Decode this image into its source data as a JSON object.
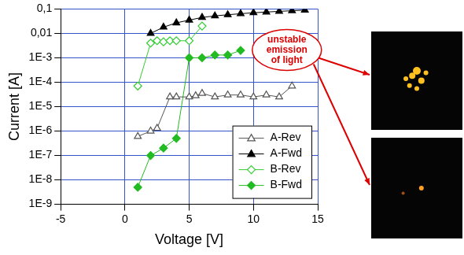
{
  "chart_data": {
    "type": "line",
    "x_label": "Voltage [V]",
    "y_label": "Current [A]",
    "annotation": "unstable emission of light",
    "log": "y",
    "grid": true,
    "legend": "lower right",
    "xlim": [
      -5,
      15
    ],
    "xticks": [
      -5,
      0,
      5,
      10,
      15
    ],
    "ylim": [
      1e-09,
      0.1
    ],
    "yticks": [
      {
        "value": 1e-09,
        "label": "1E-9"
      },
      {
        "value": 1e-08,
        "label": "1E-8"
      },
      {
        "value": 1e-07,
        "label": "1E-7"
      },
      {
        "value": 1e-06,
        "label": "1E-6"
      },
      {
        "value": 1e-05,
        "label": "1E-5"
      },
      {
        "value": 0.0001,
        "label": "1E-4"
      },
      {
        "value": 0.001,
        "label": "1E-3"
      },
      {
        "value": 0.01,
        "label": "0,01"
      },
      {
        "value": 0.1,
        "label": "0,1"
      }
    ],
    "series": [
      {
        "name": "A-Rev",
        "color": "#555555",
        "marker": "triangle_open",
        "x": [
          1,
          2,
          2.5,
          3.5,
          4,
          5,
          5.5,
          6,
          7,
          8,
          9,
          10,
          11,
          12,
          13
        ],
        "values": [
          6e-07,
          1e-06,
          1.3e-06,
          2.5e-05,
          2.5e-05,
          2.5e-05,
          2.8e-05,
          3.5e-05,
          2.5e-05,
          3e-05,
          3e-05,
          2.5e-05,
          3e-05,
          2.5e-05,
          7e-05
        ]
      },
      {
        "name": "A-Fwd",
        "color": "#000000",
        "marker": "triangle",
        "x": [
          2,
          3,
          4,
          5,
          6,
          7,
          8,
          9,
          10,
          11,
          12,
          13,
          14
        ],
        "values": [
          0.01,
          0.018,
          0.027,
          0.035,
          0.045,
          0.052,
          0.058,
          0.064,
          0.07,
          0.075,
          0.08,
          0.085,
          0.09
        ]
      },
      {
        "name": "B-Rev",
        "color": "#33cc33",
        "marker": "diamond_open",
        "x": [
          1,
          2,
          2.5,
          3,
          3.5,
          4,
          5,
          6
        ],
        "values": [
          7e-05,
          0.004,
          0.005,
          0.0045,
          0.005,
          0.005,
          0.005,
          0.02
        ]
      },
      {
        "name": "B-Fwd",
        "color": "#22bb22",
        "marker": "diamond",
        "x": [
          1,
          2,
          3,
          4,
          5,
          6,
          7,
          8,
          9
        ],
        "values": [
          5e-09,
          1e-07,
          2e-07,
          5e-07,
          0.001,
          0.001,
          0.0013,
          0.0013,
          0.002
        ]
      }
    ]
  }
}
